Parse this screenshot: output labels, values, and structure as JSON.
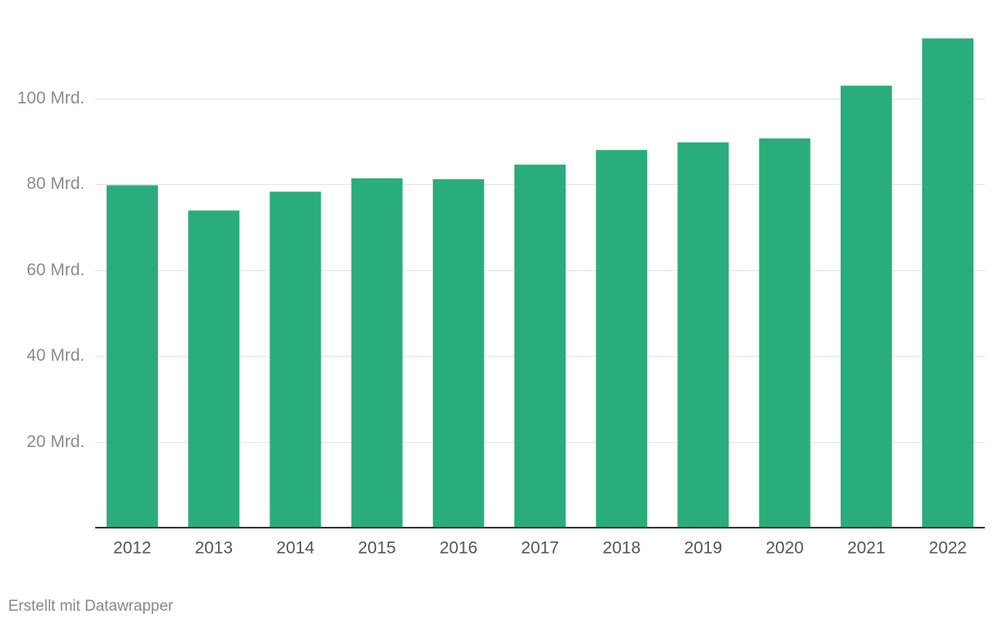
{
  "chart_data": {
    "type": "bar",
    "categories": [
      "2012",
      "2013",
      "2014",
      "2015",
      "2016",
      "2017",
      "2018",
      "2019",
      "2020",
      "2021",
      "2022"
    ],
    "values": [
      79.8,
      73.9,
      78.3,
      81.4,
      81.2,
      84.6,
      88.0,
      89.8,
      90.7,
      103.0,
      114.0
    ],
    "ylim": [
      0,
      114
    ],
    "yticks": [
      {
        "value": 20,
        "label": "20 Mrd."
      },
      {
        "value": 40,
        "label": "40 Mrd."
      },
      {
        "value": 60,
        "label": "60 Mrd."
      },
      {
        "value": 80,
        "label": "80 Mrd."
      },
      {
        "value": 100,
        "label": "100 Mrd."
      }
    ],
    "grid": true,
    "legend": "none",
    "colors": {
      "bar": "#2aad7d",
      "grid": "#e3e3e3",
      "baseline": "#333333"
    }
  },
  "footer": {
    "credit": "Erstellt mit Datawrapper"
  }
}
